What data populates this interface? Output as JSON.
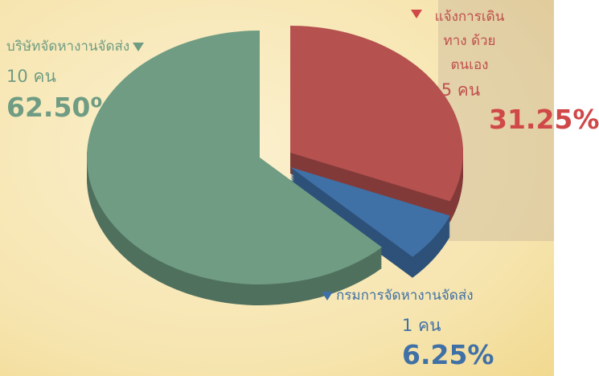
{
  "chart_data": {
    "type": "pie",
    "categories": [
      "บริษัทจัดหางานจัดส่ง",
      "แจ้งการเดินทาง ด้วยตนเอง",
      "กรมการจัดหางานจัดส่ง"
    ],
    "values": [
      62.5,
      31.25,
      6.25
    ],
    "value_labels": [
      "62.50%",
      "31.25%",
      "6.25%"
    ],
    "counts": [
      10,
      5,
      1
    ],
    "count_labels": [
      "10 คน",
      "5 คน",
      "1 คน"
    ],
    "colors": [
      "#6f9c83",
      "#b5514f",
      "#3f70a6"
    ]
  }
}
